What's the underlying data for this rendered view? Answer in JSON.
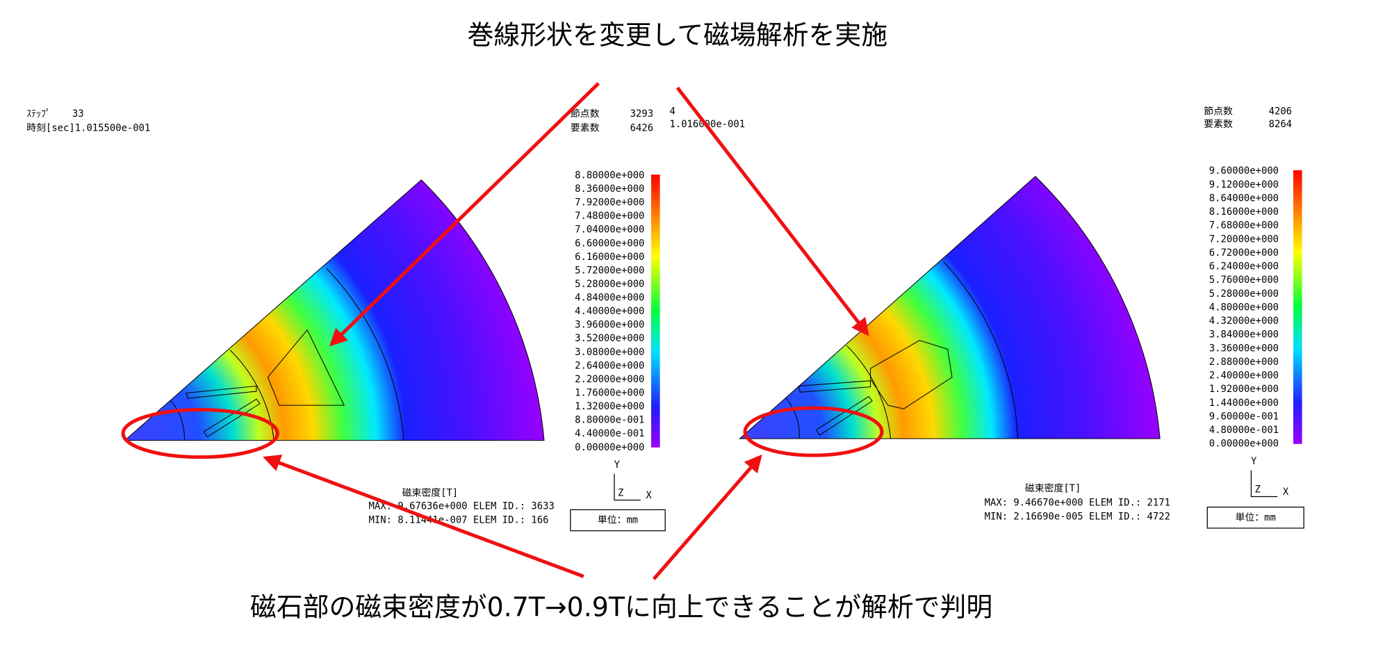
{
  "title": "巻線形状を変更して磁場解析を実施",
  "caption": "磁石部の磁束密度が0.7T→0.9Tに向上できることが解析で判明",
  "panels": [
    {
      "step_label": "ｽﾃｯﾌﾟ",
      "step": 33,
      "time": "時刻[sec]1.015500e-001",
      "node_label": "節点数",
      "nodes": 3293,
      "element_label": "要素数",
      "elements": 6426,
      "overlay": [
        "4",
        "1.016000e-001"
      ],
      "colorbar": [
        "8.80000e+000",
        "8.36000e+000",
        "7.92000e+000",
        "7.48000e+000",
        "7.04000e+000",
        "6.60000e+000",
        "6.16000e+000",
        "5.72000e+000",
        "5.28000e+000",
        "4.84000e+000",
        "4.40000e+000",
        "3.96000e+000",
        "3.52000e+000",
        "3.08000e+000",
        "2.64000e+000",
        "2.20000e+000",
        "1.76000e+000",
        "1.32000e+000",
        "8.80000e-001",
        "4.40000e-001",
        "0.00000e+000"
      ],
      "quantity": "磁束密度[T]",
      "max": "MAX: 9.67636e+000 ELEM ID.: 3633",
      "min": "MIN: 8.11441e-007 ELEM ID.: 166",
      "axes": {
        "y": "Y",
        "z": "Z",
        "x": "X"
      },
      "unit": "単位：mm"
    },
    {
      "node_label": "節点数",
      "nodes": 4206,
      "element_label": "要素数",
      "elements": 8264,
      "colorbar": [
        "9.60000e+000",
        "9.12000e+000",
        "8.64000e+000",
        "8.16000e+000",
        "7.68000e+000",
        "7.20000e+000",
        "6.72000e+000",
        "6.24000e+000",
        "5.76000e+000",
        "5.28000e+000",
        "4.80000e+000",
        "4.32000e+000",
        "3.84000e+000",
        "3.36000e+000",
        "2.88000e+000",
        "2.40000e+000",
        "1.92000e+000",
        "1.44000e+000",
        "9.60000e-001",
        "4.80000e-001",
        "0.00000e+000"
      ],
      "quantity": "磁束密度[T]",
      "max": "MAX: 9.46670e+000 ELEM ID.: 2171",
      "min": "MIN: 2.16690e-005 ELEM ID.: 4722",
      "axes": {
        "y": "Y",
        "z": "Z",
        "x": "X"
      },
      "unit": "単位：mm"
    }
  ]
}
